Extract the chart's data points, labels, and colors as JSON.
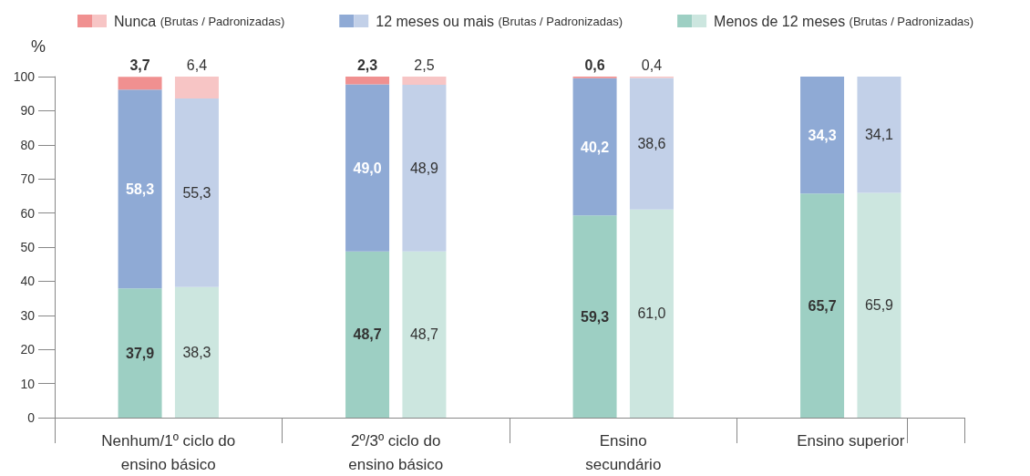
{
  "chart_data": {
    "type": "bar",
    "stacked": true,
    "ylabel": "%",
    "categories": [
      null,
      "Nenhum/1º ciclo do\nensino básico",
      null,
      null,
      null,
      "2º/3º ciclo do\nensino básico",
      null,
      null,
      null,
      "Ensino\nsecundário",
      null,
      null,
      null,
      "Ensino superior",
      null,
      null
    ],
    "series": [
      {
        "name": "Menos de 12 meses (Brutas / Padronizadas)",
        "color": "#9dcfc3",
        "colors": [
          "#9dcfc3",
          "#9dcfc3",
          "#cce6df",
          "#9dcfc3",
          "#9dcfc3",
          "#9dcfc3",
          "#cce6df",
          "#9dcfc3",
          "#9dcfc3",
          "#9dcfc3",
          "#cce6df",
          "#9dcfc3",
          "#9dcfc3",
          "#9dcfc3",
          "#cce6df",
          "#9dcfc3"
        ],
        "values": [
          null,
          37.9,
          38.3,
          null,
          null,
          48.7,
          48.7,
          null,
          null,
          59.3,
          61.0,
          null,
          null,
          65.7,
          65.9,
          null
        ],
        "value_labels": [
          null,
          "37,9",
          "38,3",
          null,
          null,
          "48,7",
          "48,7",
          null,
          null,
          "59,3",
          "61,0",
          null,
          null,
          "65,7",
          "65,9",
          null
        ]
      },
      {
        "name": "12 meses ou mais (Brutas / Padronizadas)",
        "color": "#8faad5",
        "colors": [
          "#8faad5",
          "#8faad5",
          "#c2d0e8",
          "#8faad5",
          "#8faad5",
          "#8faad5",
          "#c2d0e8",
          "#8faad5",
          "#8faad5",
          "#8faad5",
          "#c2d0e8",
          "#8faad5",
          "#8faad5",
          "#8faad5",
          "#c2d0e8",
          "#8faad5"
        ],
        "values": [
          null,
          58.3,
          55.3,
          null,
          null,
          49.0,
          48.9,
          null,
          null,
          40.2,
          38.6,
          null,
          null,
          34.3,
          34.1,
          null
        ],
        "value_labels": [
          null,
          "58,3",
          "55,3",
          null,
          null,
          "49,0",
          "48,9",
          null,
          null,
          "40,2",
          "38,6",
          null,
          null,
          "34,3",
          "34,1",
          null
        ]
      },
      {
        "name": "Nunca (Brutas / Padronizadas)",
        "color": "#f09090",
        "colors": [
          "#f09090",
          "#f09090",
          "#f7c5c5",
          "#f09090",
          "#f09090",
          "#f09090",
          "#f7c5c5",
          "#f09090",
          "#f09090",
          "#f09090",
          "#f7c5c5",
          "#f09090",
          "#f09090",
          "#f09090",
          "#f7c5c5",
          "#f09090"
        ],
        "values": [
          null,
          3.7,
          6.4,
          null,
          null,
          2.3,
          2.5,
          null,
          null,
          0.6,
          0.4,
          null,
          null,
          null,
          null,
          null
        ],
        "value_labels": [
          null,
          "3,7",
          "6,4",
          null,
          null,
          "2,3",
          "2,5",
          null,
          null,
          "0,6",
          "0,4",
          null,
          null,
          null,
          null,
          null
        ]
      }
    ],
    "ylim": [
      0,
      100
    ],
    "yticks": [
      0,
      10,
      20,
      30,
      40,
      50,
      60,
      70,
      80,
      90,
      100
    ],
    "grid": false,
    "legend": "top"
  }
}
